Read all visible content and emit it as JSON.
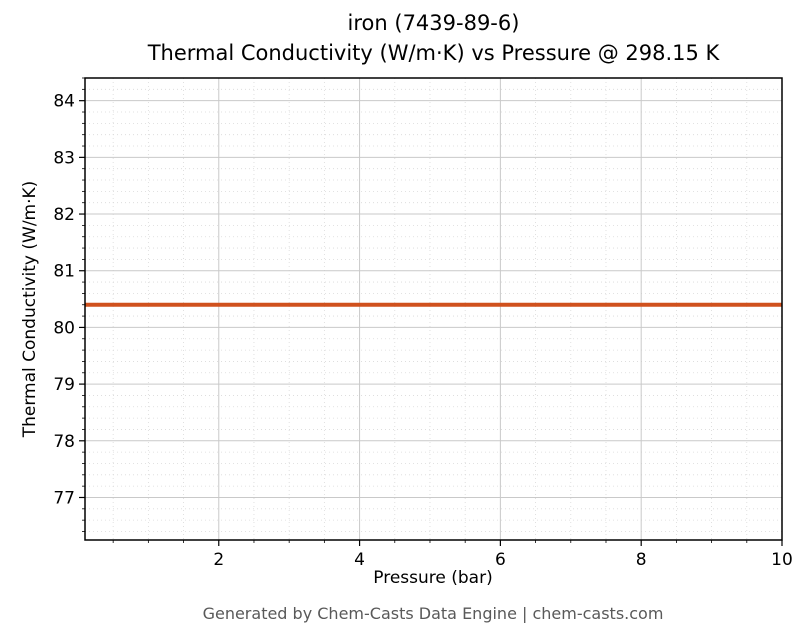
{
  "figure": {
    "title_line1": "iron (7439-89-6)",
    "title_line2": "Thermal Conductivity (W/m·K) vs Pressure @ 298.15 K",
    "footer": "Generated by Chem-Casts Data Engine | chem-casts.com"
  },
  "chart_data": {
    "type": "line",
    "title": "iron (7439-89-6)",
    "subtitle": "Thermal Conductivity (W/m·K) vs Pressure @ 298.15 K",
    "xlabel": "Pressure (bar)",
    "ylabel": "Thermal Conductivity (W/m·K)",
    "xlim": [
      0.1,
      10
    ],
    "ylim": [
      76.25,
      84.4
    ],
    "x_ticks": [
      2,
      4,
      6,
      8,
      10
    ],
    "y_ticks": [
      77,
      78,
      79,
      80,
      81,
      82,
      83,
      84
    ],
    "x_minor_step": 0.5,
    "y_minor_step": 0.2,
    "grid": true,
    "minor_grid": true,
    "legend": false,
    "series": [
      {
        "name": "thermal-conductivity",
        "color": "#d0511d",
        "x": [
          0.1,
          10
        ],
        "y": [
          80.4,
          80.4
        ]
      }
    ],
    "colors": {
      "major_grid": "#c9c9c9",
      "minor_grid": "#d9d9d9",
      "spine": "#000000",
      "tick_label": "#000000"
    }
  }
}
